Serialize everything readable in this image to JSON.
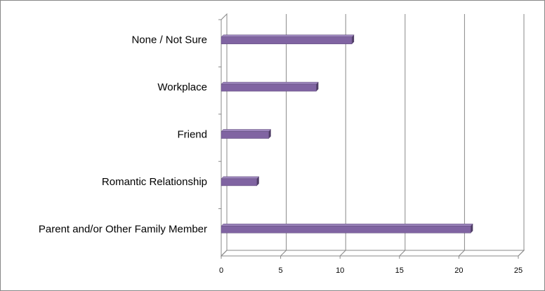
{
  "chart_data": {
    "type": "bar",
    "orientation": "horizontal",
    "categories": [
      "None / Not Sure",
      "Workplace",
      "Friend",
      "Romantic Relationship",
      "Parent and/or Other Family Member"
    ],
    "values": [
      11,
      8,
      4,
      3,
      21
    ],
    "color": "#8064a2",
    "xlim": [
      0,
      25
    ],
    "xticks": [
      0,
      5,
      10,
      15,
      20,
      25
    ],
    "grid": true
  }
}
